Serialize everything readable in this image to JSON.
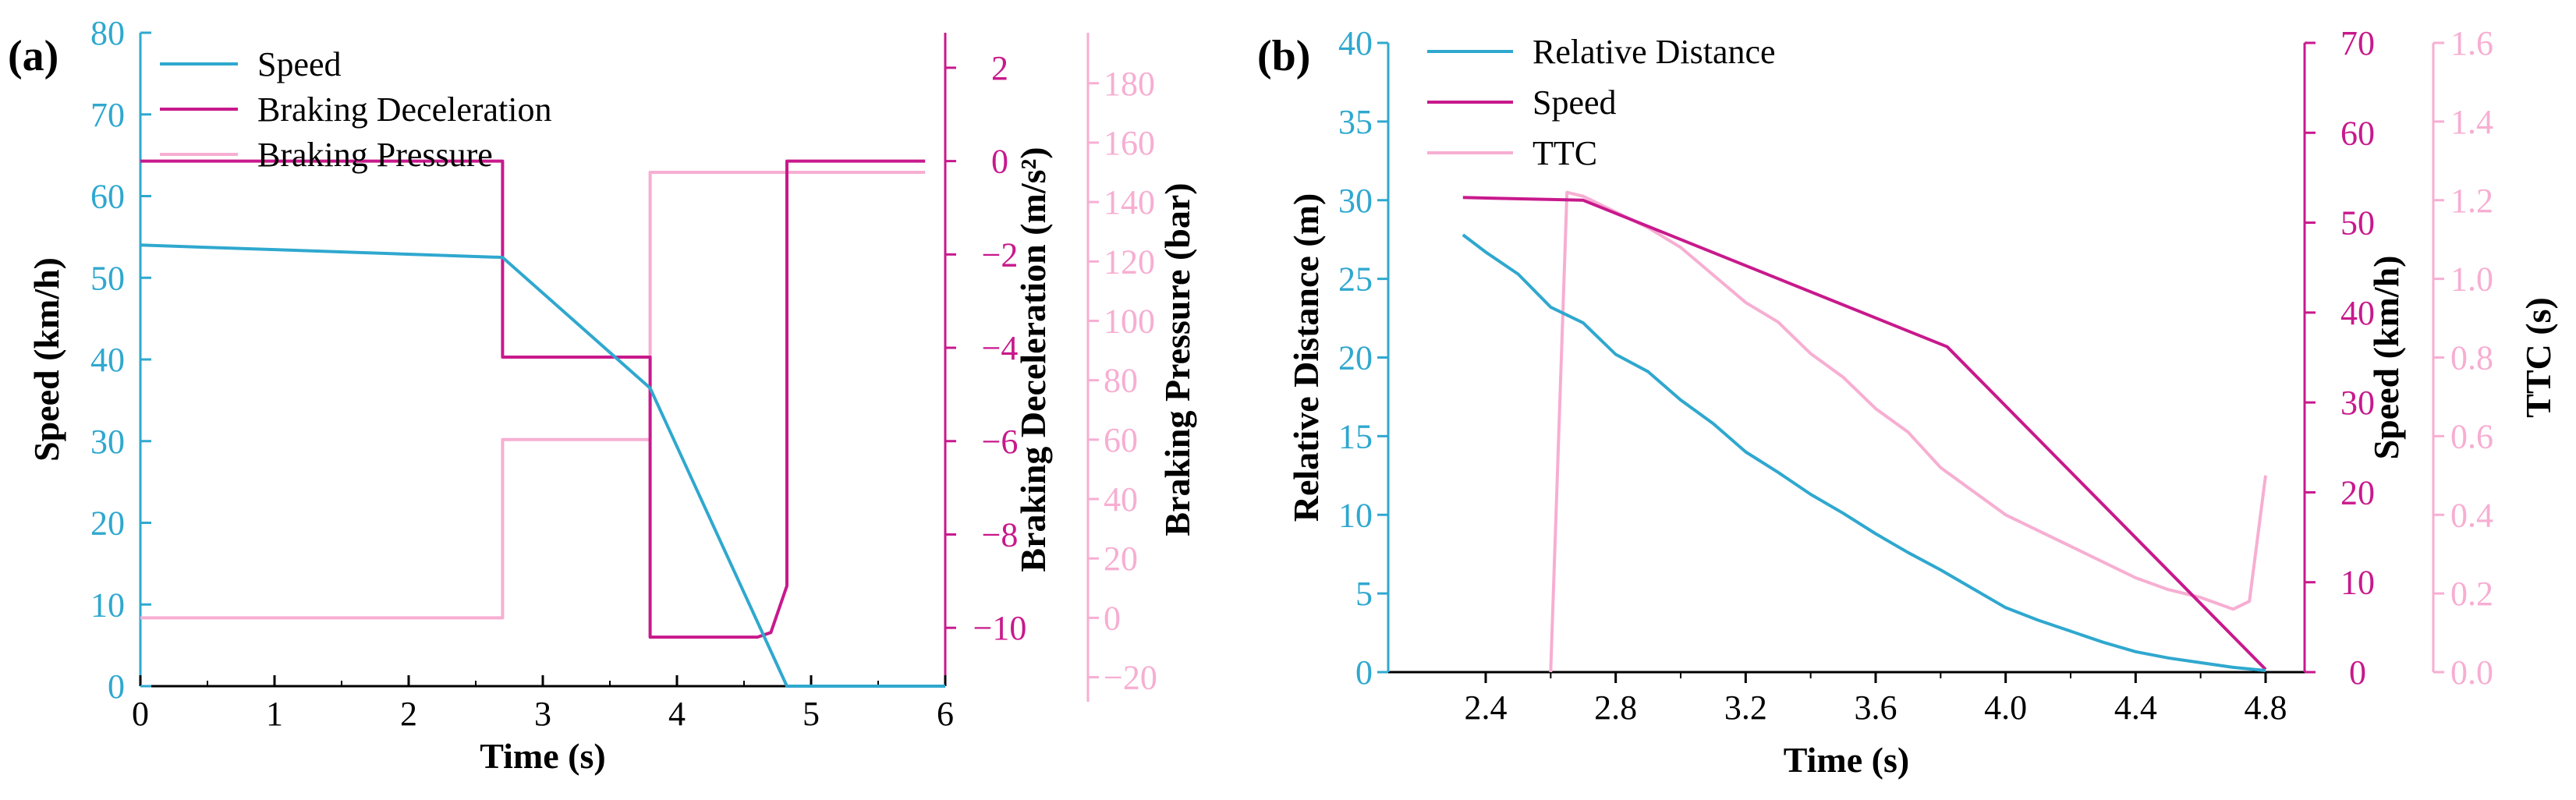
{
  "colors": {
    "blue": "#2fa8cf",
    "magenta": "#c8198c",
    "pink": "#f7aed2",
    "black": "#000000"
  },
  "chart_data": [
    {
      "type": "line",
      "panel_label": "(a)",
      "xlabel": "Time (s)",
      "xlim": [
        0,
        6
      ],
      "x_ticks": [
        "0",
        "1",
        "2",
        "3",
        "4",
        "5",
        "6"
      ],
      "legend": [
        "Speed",
        "Braking Deceleration",
        "Braking Pressure"
      ],
      "axes": [
        {
          "id": "speed",
          "label": "Speed (km/h)",
          "lim": [
            0,
            80
          ],
          "ticks": [
            "0",
            "10",
            "20",
            "30",
            "40",
            "50",
            "60",
            "70",
            "80"
          ],
          "color_key": "blue"
        },
        {
          "id": "decel",
          "label": "Braking Deceleration (m/s²)",
          "lim": [
            -11.25,
            2.75
          ],
          "ticks": [
            "2",
            "0",
            "−2",
            "−4",
            "−6",
            "−8",
            "−10"
          ],
          "tick_values": [
            2,
            0,
            -2,
            -4,
            -6,
            -8,
            -10
          ],
          "color_key": "magenta"
        },
        {
          "id": "pressure",
          "label": "Braking Pressure (bar)",
          "lim": [
            -23,
            197
          ],
          "ticks": [
            "180",
            "160",
            "140",
            "120",
            "100",
            "80",
            "60",
            "40",
            "20",
            "0",
            "−20"
          ],
          "tick_values": [
            180,
            160,
            140,
            120,
            100,
            80,
            60,
            40,
            20,
            0,
            -20
          ],
          "color_key": "pink"
        }
      ],
      "series": [
        {
          "name": "Speed",
          "axis": "speed",
          "color_key": "blue",
          "x": [
            0,
            2.7,
            3.8,
            4.82,
            6
          ],
          "y": [
            54,
            52.5,
            36.5,
            0,
            0
          ]
        },
        {
          "name": "Braking Deceleration",
          "axis": "decel",
          "color_key": "magenta",
          "x": [
            0,
            2.7,
            2.7,
            3.8,
            3.8,
            4.6,
            4.7,
            4.82,
            4.82,
            5.85
          ],
          "y": [
            0,
            0,
            -4.2,
            -4.2,
            -10.2,
            -10.2,
            -10.1,
            -9.1,
            0,
            0
          ]
        },
        {
          "name": "Braking Pressure",
          "axis": "pressure",
          "color_key": "pink",
          "x": [
            0,
            2.7,
            2.7,
            3.8,
            3.8,
            5.85
          ],
          "y": [
            0,
            0,
            60,
            60,
            150,
            150
          ]
        }
      ]
    },
    {
      "type": "line",
      "panel_label": "(b)",
      "xlabel": "Time (s)",
      "xlim": [
        2.1,
        4.92
      ],
      "x_ticks": [
        "2.4",
        "2.8",
        "3.2",
        "3.6",
        "4.0",
        "4.4",
        "4.8"
      ],
      "x_tick_values": [
        2.4,
        2.8,
        3.2,
        3.6,
        4.0,
        4.4,
        4.8
      ],
      "legend": [
        "Relative Distance",
        "Speed",
        "TTC"
      ],
      "axes": [
        {
          "id": "distance",
          "label": "Relative Distance (m)",
          "lim": [
            0,
            40
          ],
          "ticks": [
            "0",
            "5",
            "10",
            "15",
            "20",
            "25",
            "30",
            "35",
            "40"
          ],
          "color_key": "blue"
        },
        {
          "id": "speed",
          "label": "Speed (km/h)",
          "lim": [
            0,
            70
          ],
          "ticks": [
            "0",
            "10",
            "20",
            "30",
            "40",
            "50",
            "60",
            "70"
          ],
          "color_key": "magenta"
        },
        {
          "id": "ttc",
          "label": "TTC (s)",
          "lim": [
            0,
            1.6
          ],
          "ticks": [
            "0.0",
            "0.2",
            "0.4",
            "0.6",
            "0.8",
            "1.0",
            "1.2",
            "1.4",
            "1.6"
          ],
          "color_key": "pink"
        }
      ],
      "series": [
        {
          "name": "Relative Distance",
          "axis": "distance",
          "color_key": "blue",
          "x": [
            2.33,
            2.4,
            2.5,
            2.6,
            2.7,
            2.8,
            2.9,
            3.0,
            3.1,
            3.2,
            3.3,
            3.4,
            3.5,
            3.6,
            3.7,
            3.8,
            3.9,
            4.0,
            4.1,
            4.2,
            4.3,
            4.4,
            4.5,
            4.6,
            4.7,
            4.8
          ],
          "y": [
            27.8,
            26.7,
            25.3,
            23.2,
            22.2,
            20.2,
            19.1,
            17.3,
            15.8,
            14.0,
            12.7,
            11.3,
            10.1,
            8.8,
            7.6,
            6.5,
            5.3,
            4.1,
            3.3,
            2.6,
            1.9,
            1.3,
            0.9,
            0.6,
            0.3,
            0.1
          ]
        },
        {
          "name": "Speed",
          "axis": "speed",
          "color_key": "magenta",
          "x": [
            2.33,
            2.7,
            3.82,
            4.8
          ],
          "y": [
            52.8,
            52.5,
            36.2,
            0.3
          ]
        },
        {
          "name": "TTC",
          "axis": "ttc",
          "color_key": "pink",
          "x": [
            2.6,
            2.65,
            2.7,
            2.8,
            2.9,
            3.0,
            3.1,
            3.2,
            3.3,
            3.4,
            3.5,
            3.6,
            3.7,
            3.8,
            3.9,
            4.0,
            4.1,
            4.2,
            4.3,
            4.4,
            4.5,
            4.6,
            4.7,
            4.75,
            4.8
          ],
          "y": [
            0.0,
            1.22,
            1.21,
            1.17,
            1.13,
            1.08,
            1.01,
            0.94,
            0.89,
            0.81,
            0.75,
            0.67,
            0.61,
            0.52,
            0.46,
            0.4,
            0.36,
            0.32,
            0.28,
            0.24,
            0.21,
            0.19,
            0.16,
            0.18,
            0.5
          ]
        }
      ]
    }
  ]
}
